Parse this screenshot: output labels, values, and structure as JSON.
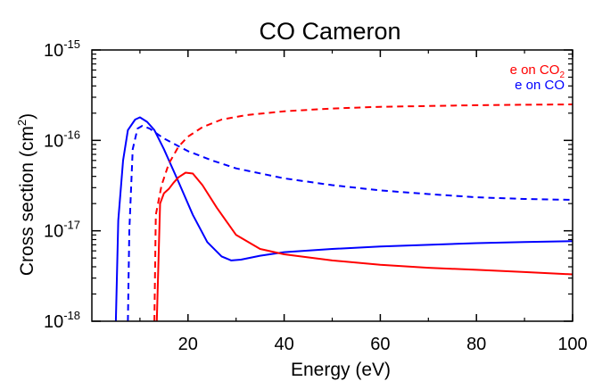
{
  "chart_data": {
    "type": "line",
    "title": "CO Cameron",
    "xlabel": "Energy (eV)",
    "ylabel": {
      "main": "Cross section (cm",
      "sup": "2",
      "tail": ")"
    },
    "xlim": [
      0,
      100
    ],
    "ylim": [
      1e-18,
      1e-15
    ],
    "y_scale": "log",
    "x_ticks": [
      {
        "value": 20,
        "label": "20"
      },
      {
        "value": 40,
        "label": "40"
      },
      {
        "value": 60,
        "label": "60"
      },
      {
        "value": 80,
        "label": "80"
      },
      {
        "value": 100,
        "label": "100"
      }
    ],
    "y_ticks": [
      {
        "value": 1e-18,
        "base": "10",
        "exp": "-18"
      },
      {
        "value": 1e-17,
        "base": "10",
        "exp": "-17"
      },
      {
        "value": 1e-16,
        "base": "10",
        "exp": "-16"
      },
      {
        "value": 1e-15,
        "base": "10",
        "exp": "-15"
      }
    ],
    "legend": {
      "placement": "top-right",
      "entries": [
        {
          "text": "e on CO",
          "sub": "2",
          "color": "#ff0000"
        },
        {
          "text": "e on CO",
          "sub": "",
          "color": "#0000ff"
        }
      ]
    },
    "series": [
      {
        "legend_index": 1,
        "color": "#0000ff",
        "dash": "solid",
        "points": [
          [
            5,
            1e-18
          ],
          [
            5.5,
            1.3e-17
          ],
          [
            6.5,
            6e-17
          ],
          [
            7.5,
            1.3e-16
          ],
          [
            9,
            1.7e-16
          ],
          [
            10,
            1.8e-16
          ],
          [
            11.5,
            1.6e-16
          ],
          [
            13,
            1.3e-16
          ],
          [
            15,
            8e-17
          ],
          [
            18,
            3.5e-17
          ],
          [
            21,
            1.5e-17
          ],
          [
            24,
            7.5e-18
          ],
          [
            27,
            5.2e-18
          ],
          [
            29,
            4.7e-18
          ],
          [
            31,
            4.8e-18
          ],
          [
            35,
            5.3e-18
          ],
          [
            40,
            5.8e-18
          ],
          [
            50,
            6.3e-18
          ],
          [
            60,
            6.7e-18
          ],
          [
            70,
            7e-18
          ],
          [
            80,
            7.3e-18
          ],
          [
            90,
            7.5e-18
          ],
          [
            100,
            7.7e-18
          ]
        ]
      },
      {
        "legend_index": 1,
        "color": "#0000ff",
        "dash": "dashed",
        "points": [
          [
            7.5,
            1e-18
          ],
          [
            7.8,
            1e-17
          ],
          [
            8.5,
            8e-17
          ],
          [
            9.5,
            1.35e-16
          ],
          [
            10.5,
            1.45e-16
          ],
          [
            12,
            1.35e-16
          ],
          [
            15,
            1.05e-16
          ],
          [
            20,
            7.6e-17
          ],
          [
            25,
            6e-17
          ],
          [
            30,
            4.9e-17
          ],
          [
            40,
            3.8e-17
          ],
          [
            50,
            3.2e-17
          ],
          [
            60,
            2.8e-17
          ],
          [
            70,
            2.55e-17
          ],
          [
            80,
            2.35e-17
          ],
          [
            90,
            2.25e-17
          ],
          [
            100,
            2.2e-17
          ]
        ]
      },
      {
        "legend_index": 0,
        "color": "#ff0000",
        "dash": "solid",
        "points": [
          [
            13.5,
            1e-18
          ],
          [
            14.2,
            2e-17
          ],
          [
            15,
            2.6e-17
          ],
          [
            16,
            2.9e-17
          ],
          [
            17,
            3.4e-17
          ],
          [
            18,
            3.9e-17
          ],
          [
            19.5,
            4.4e-17
          ],
          [
            21,
            4.3e-17
          ],
          [
            23,
            3.2e-17
          ],
          [
            26,
            1.8e-17
          ],
          [
            30,
            9e-18
          ],
          [
            35,
            6.3e-18
          ],
          [
            40,
            5.5e-18
          ],
          [
            50,
            4.7e-18
          ],
          [
            60,
            4.2e-18
          ],
          [
            70,
            3.9e-18
          ],
          [
            80,
            3.7e-18
          ],
          [
            90,
            3.5e-18
          ],
          [
            100,
            3.3e-18
          ]
        ]
      },
      {
        "legend_index": 0,
        "color": "#ff0000",
        "dash": "dashed",
        "points": [
          [
            13,
            1e-18
          ],
          [
            13.3,
            1.5e-17
          ],
          [
            14.5,
            3.2e-17
          ],
          [
            16,
            5.5e-17
          ],
          [
            18,
            8.5e-17
          ],
          [
            20,
            1.1e-16
          ],
          [
            23,
            1.4e-16
          ],
          [
            27,
            1.7e-16
          ],
          [
            32,
            1.9e-16
          ],
          [
            40,
            2.1e-16
          ],
          [
            50,
            2.25e-16
          ],
          [
            60,
            2.35e-16
          ],
          [
            70,
            2.4e-16
          ],
          [
            80,
            2.45e-16
          ],
          [
            90,
            2.48e-16
          ],
          [
            100,
            2.5e-16
          ]
        ]
      }
    ]
  }
}
